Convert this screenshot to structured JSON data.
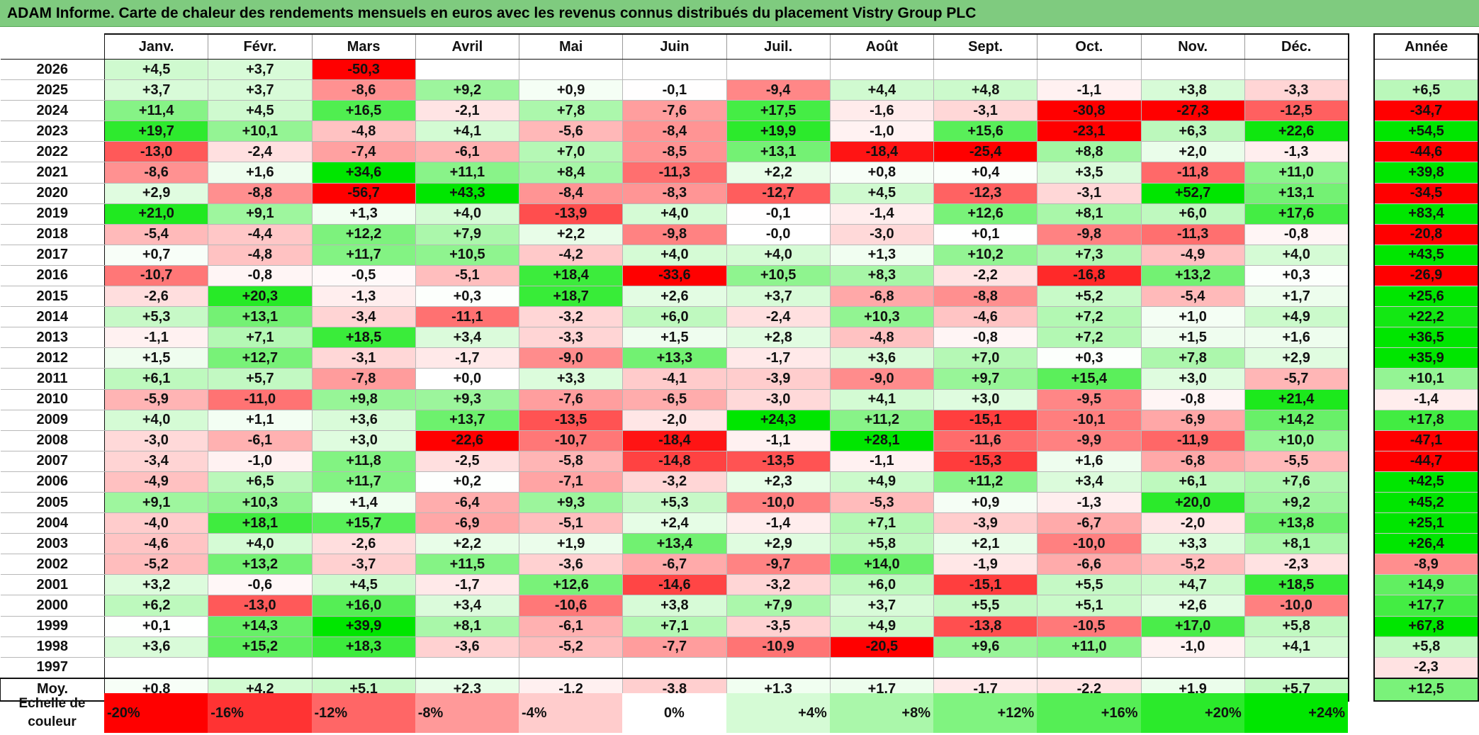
{
  "title": "ADAM Informe. Carte de chaleur des rendements mensuels en euros avec les revenus connus distribués du placement Vistry Group PLC",
  "chart_data": {
    "type": "heatmap",
    "columns": [
      "Janv.",
      "Févr.",
      "Mars",
      "Avril",
      "Mai",
      "Juin",
      "Juil.",
      "Août",
      "Sept.",
      "Oct.",
      "Nov.",
      "Déc."
    ],
    "year_column_label": "Année",
    "rows": [
      {
        "year": "2026",
        "months": [
          "+4,5",
          "+3,7",
          "-50,3",
          "",
          "",
          "",
          "",
          "",
          "",
          "",
          "",
          ""
        ],
        "annual": ""
      },
      {
        "year": "2025",
        "months": [
          "+3,7",
          "+3,7",
          "-8,6",
          "+9,2",
          "+0,9",
          "-0,1",
          "-9,4",
          "+4,4",
          "+4,8",
          "-1,1",
          "+3,8",
          "-3,3"
        ],
        "annual": "+6,5"
      },
      {
        "year": "2024",
        "months": [
          "+11,4",
          "+4,5",
          "+16,5",
          "-2,1",
          "+7,8",
          "-7,6",
          "+17,5",
          "-1,6",
          "-3,1",
          "-30,8",
          "-27,3",
          "-12,5"
        ],
        "annual": "-34,7"
      },
      {
        "year": "2023",
        "months": [
          "+19,7",
          "+10,1",
          "-4,8",
          "+4,1",
          "-5,6",
          "-8,4",
          "+19,9",
          "-1,0",
          "+15,6",
          "-23,1",
          "+6,3",
          "+22,6"
        ],
        "annual": "+54,5"
      },
      {
        "year": "2022",
        "months": [
          "-13,0",
          "-2,4",
          "-7,4",
          "-6,1",
          "+7,0",
          "-8,5",
          "+13,1",
          "-18,4",
          "-25,4",
          "+8,8",
          "+2,0",
          "-1,3"
        ],
        "annual": "-44,6"
      },
      {
        "year": "2021",
        "months": [
          "-8,6",
          "+1,6",
          "+34,6",
          "+11,1",
          "+8,4",
          "-11,3",
          "+2,2",
          "+0,8",
          "+0,4",
          "+3,5",
          "-11,8",
          "+11,0"
        ],
        "annual": "+39,8"
      },
      {
        "year": "2020",
        "months": [
          "+2,9",
          "-8,8",
          "-56,7",
          "+43,3",
          "-8,4",
          "-8,3",
          "-12,7",
          "+4,5",
          "-12,3",
          "-3,1",
          "+52,7",
          "+13,1"
        ],
        "annual": "-34,5"
      },
      {
        "year": "2019",
        "months": [
          "+21,0",
          "+9,1",
          "+1,3",
          "+4,0",
          "-13,9",
          "+4,0",
          "-0,1",
          "-1,4",
          "+12,6",
          "+8,1",
          "+6,0",
          "+17,6"
        ],
        "annual": "+83,4"
      },
      {
        "year": "2018",
        "months": [
          "-5,4",
          "-4,4",
          "+12,2",
          "+7,9",
          "+2,2",
          "-9,8",
          "-0,0",
          "-3,0",
          "+0,1",
          "-9,8",
          "-11,3",
          "-0,8"
        ],
        "annual": "-20,8"
      },
      {
        "year": "2017",
        "months": [
          "+0,7",
          "-4,8",
          "+11,7",
          "+10,5",
          "-4,2",
          "+4,0",
          "+4,0",
          "+1,3",
          "+10,2",
          "+7,3",
          "-4,9",
          "+4,0"
        ],
        "annual": "+43,5"
      },
      {
        "year": "2016",
        "months": [
          "-10,7",
          "-0,8",
          "-0,5",
          "-5,1",
          "+18,4",
          "-33,6",
          "+10,5",
          "+8,3",
          "-2,2",
          "-16,8",
          "+13,2",
          "+0,3"
        ],
        "annual": "-26,9"
      },
      {
        "year": "2015",
        "months": [
          "-2,6",
          "+20,3",
          "-1,3",
          "+0,3",
          "+18,7",
          "+2,6",
          "+3,7",
          "-6,8",
          "-8,8",
          "+5,2",
          "-5,4",
          "+1,7"
        ],
        "annual": "+25,6"
      },
      {
        "year": "2014",
        "months": [
          "+5,3",
          "+13,1",
          "-3,4",
          "-11,1",
          "-3,2",
          "+6,0",
          "-2,4",
          "+10,3",
          "-4,6",
          "+7,2",
          "+1,0",
          "+4,9"
        ],
        "annual": "+22,2"
      },
      {
        "year": "2013",
        "months": [
          "-1,1",
          "+7,1",
          "+18,5",
          "+3,4",
          "-3,3",
          "+1,5",
          "+2,8",
          "-4,8",
          "-0,8",
          "+7,2",
          "+1,5",
          "+1,6"
        ],
        "annual": "+36,5"
      },
      {
        "year": "2012",
        "months": [
          "+1,5",
          "+12,7",
          "-3,1",
          "-1,7",
          "-9,0",
          "+13,3",
          "-1,7",
          "+3,6",
          "+7,0",
          "+0,3",
          "+7,8",
          "+2,9"
        ],
        "annual": "+35,9"
      },
      {
        "year": "2011",
        "months": [
          "+6,1",
          "+5,7",
          "-7,8",
          "+0,0",
          "+3,3",
          "-4,1",
          "-3,9",
          "-9,0",
          "+9,7",
          "+15,4",
          "+3,0",
          "-5,7"
        ],
        "annual": "+10,1"
      },
      {
        "year": "2010",
        "months": [
          "-5,9",
          "-11,0",
          "+9,8",
          "+9,3",
          "-7,6",
          "-6,5",
          "-3,0",
          "+4,1",
          "+3,0",
          "-9,5",
          "-0,8",
          "+21,4"
        ],
        "annual": "-1,4"
      },
      {
        "year": "2009",
        "months": [
          "+4,0",
          "+1,1",
          "+3,6",
          "+13,7",
          "-13,5",
          "-2,0",
          "+24,3",
          "+11,2",
          "-15,1",
          "-10,1",
          "-6,9",
          "+14,2"
        ],
        "annual": "+17,8"
      },
      {
        "year": "2008",
        "months": [
          "-3,0",
          "-6,1",
          "+3,0",
          "-22,6",
          "-10,7",
          "-18,4",
          "-1,1",
          "+28,1",
          "-11,6",
          "-9,9",
          "-11,9",
          "+10,0"
        ],
        "annual": "-47,1"
      },
      {
        "year": "2007",
        "months": [
          "-3,4",
          "-1,0",
          "+11,8",
          "-2,5",
          "-5,8",
          "-14,8",
          "-13,5",
          "-1,1",
          "-15,3",
          "+1,6",
          "-6,8",
          "-5,5"
        ],
        "annual": "-44,7"
      },
      {
        "year": "2006",
        "months": [
          "-4,9",
          "+6,5",
          "+11,7",
          "+0,2",
          "-7,1",
          "-3,2",
          "+2,3",
          "+4,9",
          "+11,2",
          "+3,4",
          "+6,1",
          "+7,6"
        ],
        "annual": "+42,5"
      },
      {
        "year": "2005",
        "months": [
          "+9,1",
          "+10,3",
          "+1,4",
          "-6,4",
          "+9,3",
          "+5,3",
          "-10,0",
          "-5,3",
          "+0,9",
          "-1,3",
          "+20,0",
          "+9,2"
        ],
        "annual": "+45,2"
      },
      {
        "year": "2004",
        "months": [
          "-4,0",
          "+18,1",
          "+15,7",
          "-6,9",
          "-5,1",
          "+2,4",
          "-1,4",
          "+7,1",
          "-3,9",
          "-6,7",
          "-2,0",
          "+13,8"
        ],
        "annual": "+25,1"
      },
      {
        "year": "2003",
        "months": [
          "-4,6",
          "+4,0",
          "-2,6",
          "+2,2",
          "+1,9",
          "+13,4",
          "+2,9",
          "+5,8",
          "+2,1",
          "-10,0",
          "+3,3",
          "+8,1"
        ],
        "annual": "+26,4"
      },
      {
        "year": "2002",
        "months": [
          "-5,2",
          "+13,2",
          "-3,7",
          "+11,5",
          "-3,6",
          "-6,7",
          "-9,7",
          "+14,0",
          "-1,9",
          "-6,6",
          "-5,2",
          "-2,3"
        ],
        "annual": "-8,9"
      },
      {
        "year": "2001",
        "months": [
          "+3,2",
          "-0,6",
          "+4,5",
          "-1,7",
          "+12,6",
          "-14,6",
          "-3,2",
          "+6,0",
          "-15,1",
          "+5,5",
          "+4,7",
          "+18,5"
        ],
        "annual": "+14,9"
      },
      {
        "year": "2000",
        "months": [
          "+6,2",
          "-13,0",
          "+16,0",
          "+3,4",
          "-10,6",
          "+3,8",
          "+7,9",
          "+3,7",
          "+5,5",
          "+5,1",
          "+2,6",
          "-10,0"
        ],
        "annual": "+17,7"
      },
      {
        "year": "1999",
        "months": [
          "+0,1",
          "+14,3",
          "+39,9",
          "+8,1",
          "-6,1",
          "+7,1",
          "-3,5",
          "+4,9",
          "-13,8",
          "-10,5",
          "+17,0",
          "+5,8"
        ],
        "annual": "+67,8"
      },
      {
        "year": "1998",
        "months": [
          "+3,6",
          "+15,2",
          "+18,3",
          "-3,6",
          "-5,2",
          "-7,7",
          "-10,9",
          "-20,5",
          "+9,6",
          "+11,0",
          "-1,0",
          "+4,1"
        ],
        "annual": "+5,8"
      },
      {
        "year": "1997",
        "months": [
          "",
          "",
          "",
          "",
          "",
          "",
          "",
          "",
          "",
          "",
          "",
          ""
        ],
        "annual": "-2,3"
      }
    ],
    "average": {
      "label": "Moy.",
      "months": [
        "+0,8",
        "+4,2",
        "+5,1",
        "+2,3",
        "-1,2",
        "-3,8",
        "+1,3",
        "+1,7",
        "-1,7",
        "-2,2",
        "+1,9",
        "+5,7"
      ],
      "annual": "+12,5"
    },
    "color_scale": {
      "label_line1": "Echelle de",
      "label_line2": "couleur",
      "stops": [
        {
          "label": "-20%",
          "value": -20,
          "align": "left"
        },
        {
          "label": "-16%",
          "value": -16,
          "align": "left"
        },
        {
          "label": "-12%",
          "value": -12,
          "align": "left"
        },
        {
          "label": "-8%",
          "value": -8,
          "align": "left"
        },
        {
          "label": "-4%",
          "value": -4,
          "align": "left"
        },
        {
          "label": "0%",
          "value": 0,
          "align": "center"
        },
        {
          "label": "+4%",
          "value": 4,
          "align": "right"
        },
        {
          "label": "+8%",
          "value": 8,
          "align": "right"
        },
        {
          "label": "+12%",
          "value": 12,
          "align": "right"
        },
        {
          "label": "+16%",
          "value": 16,
          "align": "right"
        },
        {
          "label": "+20%",
          "value": 20,
          "align": "right"
        },
        {
          "label": "+24%",
          "value": 24,
          "align": "right"
        }
      ],
      "colors": {
        "negative_max": "#ff0000",
        "zero": "#ffffff",
        "positive_max": "#00e600"
      }
    }
  }
}
